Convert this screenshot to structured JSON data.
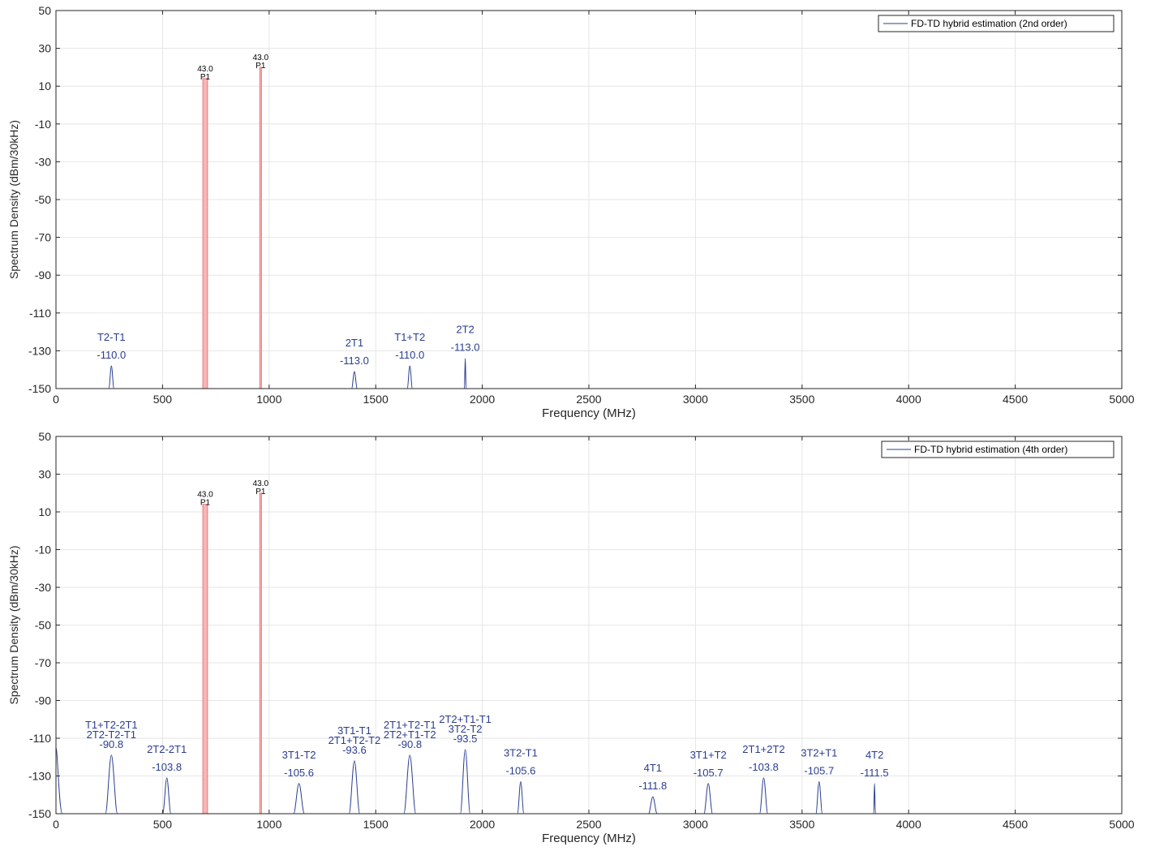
{
  "colors": {
    "trace": "#2a3d8f",
    "carrier_fill": "#f7b6b6",
    "carrier_stroke": "#e87a7a",
    "grid": "#e6e6e6",
    "axis": "#262626",
    "peak_label": "#2a3d8f",
    "carrier_label": "#000000"
  },
  "chart_data": [
    {
      "type": "line",
      "title": "",
      "xlabel": "Frequency (MHz)",
      "ylabel": "Spectrum Density (dBm/30kHz)",
      "xlim": [
        0,
        5000
      ],
      "ylim": [
        -150,
        50
      ],
      "xticks": [
        0,
        500,
        1000,
        1500,
        2000,
        2500,
        3000,
        3500,
        4000,
        4500,
        5000
      ],
      "yticks": [
        50,
        30,
        10,
        -10,
        -30,
        -50,
        -70,
        -90,
        -110,
        -130,
        -150
      ],
      "xtick_labels": [
        "0",
        "500",
        "1000",
        "1500",
        "2000",
        "2500",
        "3000",
        "3500",
        "4000",
        "4500",
        "5000"
      ],
      "ytick_labels": [
        "50",
        "30",
        "10",
        "-10",
        "-30",
        "-50",
        "-70",
        "-90",
        "-110",
        "-130",
        "-150"
      ],
      "grid": true,
      "legend": {
        "position": "top-right",
        "entries": [
          "FD-TD hybrid estimation (2nd order)"
        ]
      },
      "carriers": [
        {
          "x": 700,
          "value": 43.0,
          "value_label": "43.0",
          "name": "P1",
          "peak_y": 14,
          "width_mhz": 22
        },
        {
          "x": 960,
          "value": 43.0,
          "value_label": "43.0",
          "name": "P1",
          "peak_y": 20,
          "width_mhz": 8
        }
      ],
      "series": [
        {
          "name": "FD-TD hybrid estimation (2nd order)",
          "peaks": [
            {
              "x": 260,
              "y": -138,
              "width_mhz": 24,
              "labels": [
                "T2-T1"
              ],
              "value_label": "-110.0"
            },
            {
              "x": 1400,
              "y": -141,
              "width_mhz": 26,
              "labels": [
                "2T1"
              ],
              "value_label": "-113.0"
            },
            {
              "x": 1660,
              "y": -138,
              "width_mhz": 24,
              "labels": [
                "T1+T2"
              ],
              "value_label": "-110.0"
            },
            {
              "x": 1920,
              "y": -134,
              "width_mhz": 8,
              "labels": [
                "2T2"
              ],
              "value_label": "-113.0"
            }
          ]
        }
      ]
    },
    {
      "type": "line",
      "title": "",
      "xlabel": "Frequency (MHz)",
      "ylabel": "Spectrum Density (dBm/30kHz)",
      "xlim": [
        0,
        5000
      ],
      "ylim": [
        -150,
        50
      ],
      "xticks": [
        0,
        500,
        1000,
        1500,
        2000,
        2500,
        3000,
        3500,
        4000,
        4500,
        5000
      ],
      "yticks": [
        50,
        30,
        10,
        -10,
        -30,
        -50,
        -70,
        -90,
        -110,
        -130,
        -150
      ],
      "xtick_labels": [
        "0",
        "500",
        "1000",
        "1500",
        "2000",
        "2500",
        "3000",
        "3500",
        "4000",
        "4500",
        "5000"
      ],
      "ytick_labels": [
        "50",
        "30",
        "10",
        "-10",
        "-30",
        "-50",
        "-70",
        "-90",
        "-110",
        "-130",
        "-150"
      ],
      "grid": true,
      "legend": {
        "position": "top-right",
        "entries": [
          "FD-TD hybrid estimation (4th order)"
        ]
      },
      "carriers": [
        {
          "x": 700,
          "value": 43.0,
          "value_label": "43.0",
          "name": "P1",
          "peak_y": 14,
          "width_mhz": 22
        },
        {
          "x": 960,
          "value": 43.0,
          "value_label": "43.0",
          "name": "P1",
          "peak_y": 20,
          "width_mhz": 8
        }
      ],
      "series": [
        {
          "name": "FD-TD hybrid estimation (4th order)",
          "edge_peak": {
            "x": 0,
            "y": -115,
            "width_mhz": 30
          },
          "peaks": [
            {
              "x": 260,
              "y": -119,
              "width_mhz": 56,
              "labels": [
                "T1+T2-2T1",
                "2T2-T2-T1"
              ],
              "value_label": "-90.8"
            },
            {
              "x": 520,
              "y": -131,
              "width_mhz": 38,
              "labels": [
                "2T2-2T1"
              ],
              "value_label": "-103.8"
            },
            {
              "x": 1140,
              "y": -134,
              "width_mhz": 50,
              "labels": [
                "3T1-T2"
              ],
              "value_label": "-105.6"
            },
            {
              "x": 1400,
              "y": -122,
              "width_mhz": 50,
              "labels": [
                "3T1-T1",
                "2T1+T2-T2"
              ],
              "value_label": "-93.6"
            },
            {
              "x": 1660,
              "y": -119,
              "width_mhz": 56,
              "labels": [
                "2T1+T2-T1",
                "2T2+T1-T2"
              ],
              "value_label": "-90.8"
            },
            {
              "x": 1920,
              "y": -116,
              "width_mhz": 46,
              "labels": [
                "2T2+T1-T1",
                "3T2-T2"
              ],
              "value_label": "-93.5"
            },
            {
              "x": 2180,
              "y": -133,
              "width_mhz": 30,
              "labels": [
                "3T2-T1"
              ],
              "value_label": "-105.6"
            },
            {
              "x": 2800,
              "y": -141,
              "width_mhz": 40,
              "labels": [
                "4T1"
              ],
              "value_label": "-111.8"
            },
            {
              "x": 3060,
              "y": -134,
              "width_mhz": 40,
              "labels": [
                "3T1+T2"
              ],
              "value_label": "-105.7"
            },
            {
              "x": 3320,
              "y": -131,
              "width_mhz": 38,
              "labels": [
                "2T1+2T2"
              ],
              "value_label": "-103.8"
            },
            {
              "x": 3580,
              "y": -133,
              "width_mhz": 30,
              "labels": [
                "3T2+T1"
              ],
              "value_label": "-105.7"
            },
            {
              "x": 3840,
              "y": -134,
              "width_mhz": 8,
              "labels": [
                "4T2"
              ],
              "value_label": "-111.5"
            }
          ]
        }
      ]
    }
  ]
}
